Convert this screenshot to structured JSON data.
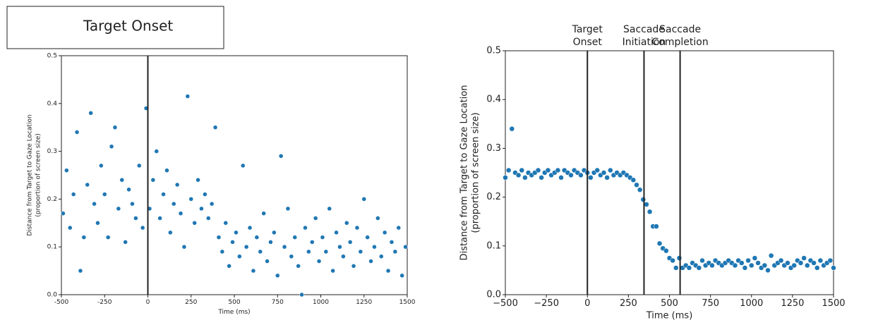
{
  "chart_data": [
    {
      "type": "scatter",
      "xlabel": "Time (ms)",
      "ylabel": [
        "Distance from Target to Gaze Location",
        "(proportion of screen size)"
      ],
      "color": "#1f77b4",
      "xlim": [
        -500,
        1500
      ],
      "ylim": [
        0,
        0.5
      ],
      "xticks": [
        -500,
        -250,
        0,
        250,
        500,
        750,
        1000,
        1250,
        1500
      ],
      "yticks": [
        {
          "value": 0,
          "label": "0.0"
        },
        0.1,
        0.2,
        0.3,
        0.4,
        0.5
      ],
      "vlines": [
        {
          "x": 0,
          "label": "Target Onset"
        }
      ],
      "x": [
        -490,
        -470,
        -450,
        -430,
        -410,
        -390,
        -370,
        -350,
        -330,
        -310,
        -290,
        -270,
        -250,
        -230,
        -210,
        -190,
        -170,
        -150,
        -130,
        -110,
        -90,
        -70,
        -50,
        -30,
        -10,
        10,
        30,
        50,
        70,
        90,
        110,
        130,
        150,
        170,
        190,
        210,
        230,
        250,
        270,
        290,
        310,
        330,
        350,
        370,
        390,
        410,
        430,
        450,
        470,
        490,
        510,
        530,
        550,
        570,
        590,
        610,
        630,
        650,
        670,
        690,
        710,
        730,
        750,
        770,
        790,
        810,
        830,
        850,
        870,
        890,
        910,
        930,
        950,
        970,
        990,
        1010,
        1030,
        1050,
        1070,
        1090,
        1110,
        1130,
        1150,
        1170,
        1190,
        1210,
        1230,
        1250,
        1270,
        1290,
        1310,
        1330,
        1350,
        1370,
        1390,
        1410,
        1430,
        1450,
        1470,
        1490
      ],
      "values": [
        0.17,
        0.26,
        0.14,
        0.21,
        0.34,
        0.05,
        0.12,
        0.23,
        0.38,
        0.19,
        0.15,
        0.27,
        0.21,
        0.12,
        0.31,
        0.35,
        0.18,
        0.24,
        0.11,
        0.22,
        0.19,
        0.16,
        0.27,
        0.14,
        0.39,
        0.18,
        0.24,
        0.3,
        0.16,
        0.21,
        0.26,
        0.13,
        0.19,
        0.23,
        0.17,
        0.1,
        0.415,
        0.2,
        0.15,
        0.24,
        0.18,
        0.21,
        0.16,
        0.19,
        0.35,
        0.12,
        0.09,
        0.15,
        0.06,
        0.11,
        0.13,
        0.08,
        0.27,
        0.1,
        0.14,
        0.05,
        0.12,
        0.09,
        0.17,
        0.07,
        0.11,
        0.13,
        0.04,
        0.29,
        0.1,
        0.18,
        0.08,
        0.12,
        0.06,
        0.0,
        0.14,
        0.09,
        0.11,
        0.16,
        0.07,
        0.12,
        0.09,
        0.18,
        0.05,
        0.13,
        0.1,
        0.08,
        0.15,
        0.11,
        0.06,
        0.14,
        0.09,
        0.2,
        0.12,
        0.07,
        0.1,
        0.16,
        0.08,
        0.13,
        0.05,
        0.11,
        0.09,
        0.14,
        0.04,
        0.1
      ]
    },
    {
      "type": "scatter",
      "xlabel": "Time (ms)",
      "ylabel": [
        "Distance from Target to Gaze Location",
        "(proportion of screen size)"
      ],
      "color": "#1f77b4",
      "xlim": [
        -500,
        1500
      ],
      "ylim": [
        0,
        0.5
      ],
      "xticks": [
        {
          "value": -500,
          "label": "−500"
        },
        {
          "value": -250,
          "label": "−250"
        },
        0,
        250,
        500,
        750,
        1000,
        1250,
        1500
      ],
      "yticks": [
        {
          "value": 0,
          "label": "0.0"
        },
        0.1,
        0.2,
        0.3,
        0.4,
        0.5
      ],
      "vlines": [
        {
          "x": 0,
          "label": [
            "Target",
            "Onset"
          ]
        },
        {
          "x": 345,
          "label": [
            "Saccade",
            "Initiation"
          ]
        },
        {
          "x": 565,
          "label": [
            "Saccade",
            "Completion"
          ]
        }
      ],
      "x": [
        -500,
        -480,
        -460,
        -440,
        -420,
        -400,
        -380,
        -360,
        -340,
        -320,
        -300,
        -280,
        -260,
        -240,
        -220,
        -200,
        -180,
        -160,
        -140,
        -120,
        -100,
        -80,
        -60,
        -40,
        -20,
        0,
        20,
        40,
        60,
        80,
        100,
        120,
        140,
        160,
        180,
        200,
        220,
        240,
        260,
        280,
        300,
        320,
        340,
        360,
        380,
        400,
        420,
        440,
        460,
        480,
        500,
        520,
        540,
        560,
        580,
        600,
        620,
        640,
        660,
        680,
        700,
        720,
        740,
        760,
        780,
        800,
        820,
        840,
        860,
        880,
        900,
        920,
        940,
        960,
        980,
        1000,
        1020,
        1040,
        1060,
        1080,
        1100,
        1120,
        1140,
        1160,
        1180,
        1200,
        1220,
        1240,
        1260,
        1280,
        1300,
        1320,
        1340,
        1360,
        1380,
        1400,
        1420,
        1440,
        1460,
        1480,
        1500
      ],
      "values": [
        0.24,
        0.255,
        0.34,
        0.25,
        0.245,
        0.255,
        0.24,
        0.25,
        0.245,
        0.25,
        0.255,
        0.24,
        0.25,
        0.255,
        0.245,
        0.25,
        0.255,
        0.24,
        0.255,
        0.25,
        0.245,
        0.255,
        0.25,
        0.245,
        0.255,
        0.25,
        0.24,
        0.25,
        0.255,
        0.245,
        0.25,
        0.24,
        0.255,
        0.245,
        0.25,
        0.245,
        0.25,
        0.245,
        0.24,
        0.235,
        0.225,
        0.215,
        0.195,
        0.185,
        0.17,
        0.14,
        0.14,
        0.105,
        0.095,
        0.09,
        0.075,
        0.07,
        0.055,
        0.075,
        0.055,
        0.06,
        0.055,
        0.065,
        0.06,
        0.055,
        0.07,
        0.06,
        0.065,
        0.06,
        0.07,
        0.065,
        0.06,
        0.065,
        0.07,
        0.065,
        0.06,
        0.07,
        0.065,
        0.055,
        0.07,
        0.06,
        0.075,
        0.065,
        0.055,
        0.06,
        0.05,
        0.08,
        0.06,
        0.065,
        0.07,
        0.06,
        0.065,
        0.055,
        0.06,
        0.07,
        0.065,
        0.075,
        0.06,
        0.07,
        0.065,
        0.055,
        0.07,
        0.06,
        0.065,
        0.07,
        0.055
      ]
    }
  ]
}
